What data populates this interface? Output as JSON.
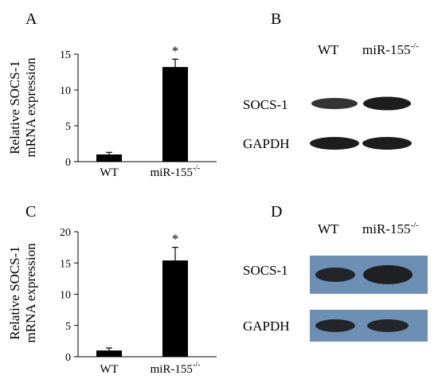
{
  "panels": {
    "A": "A",
    "B": "B",
    "C": "C",
    "D": "D"
  },
  "chart_data": [
    {
      "panel": "A",
      "type": "bar",
      "ylabel_line1": "Relative SOCS-1",
      "ylabel_line2": "mRNA expression",
      "categories": [
        "WT",
        "miR-155"
      ],
      "category_superscripts": [
        "",
        "-/-"
      ],
      "values": [
        1.0,
        13.2
      ],
      "errors": [
        0.3,
        1.1
      ],
      "significance": [
        "",
        "*"
      ],
      "yticks": [
        0,
        5,
        10,
        15
      ],
      "ylim": [
        0,
        15
      ],
      "bar_color": "#000000"
    },
    {
      "panel": "C",
      "type": "bar",
      "ylabel_line1": "Relative SOCS-1",
      "ylabel_line2": "mRNA expression",
      "categories": [
        "WT",
        "miR-155"
      ],
      "category_superscripts": [
        "",
        "-/-"
      ],
      "values": [
        1.0,
        15.4
      ],
      "errors": [
        0.4,
        2.1
      ],
      "significance": [
        "",
        "*"
      ],
      "yticks": [
        0,
        5,
        10,
        15,
        20
      ],
      "ylim": [
        0,
        20
      ],
      "bar_color": "#000000"
    }
  ],
  "blots": {
    "B": {
      "columns": [
        "WT",
        "miR-155"
      ],
      "column_superscripts": [
        "",
        "-/-"
      ],
      "rows": [
        "SOCS-1",
        "GAPDH"
      ],
      "background": "#ffffff",
      "band_color": "#111111"
    },
    "D": {
      "columns": [
        "WT",
        "miR-155"
      ],
      "column_superscripts": [
        "",
        "-/-"
      ],
      "rows": [
        "SOCS-1",
        "GAPDH"
      ],
      "background": "#6d8fb3",
      "band_color": "#1a1a1a"
    }
  }
}
